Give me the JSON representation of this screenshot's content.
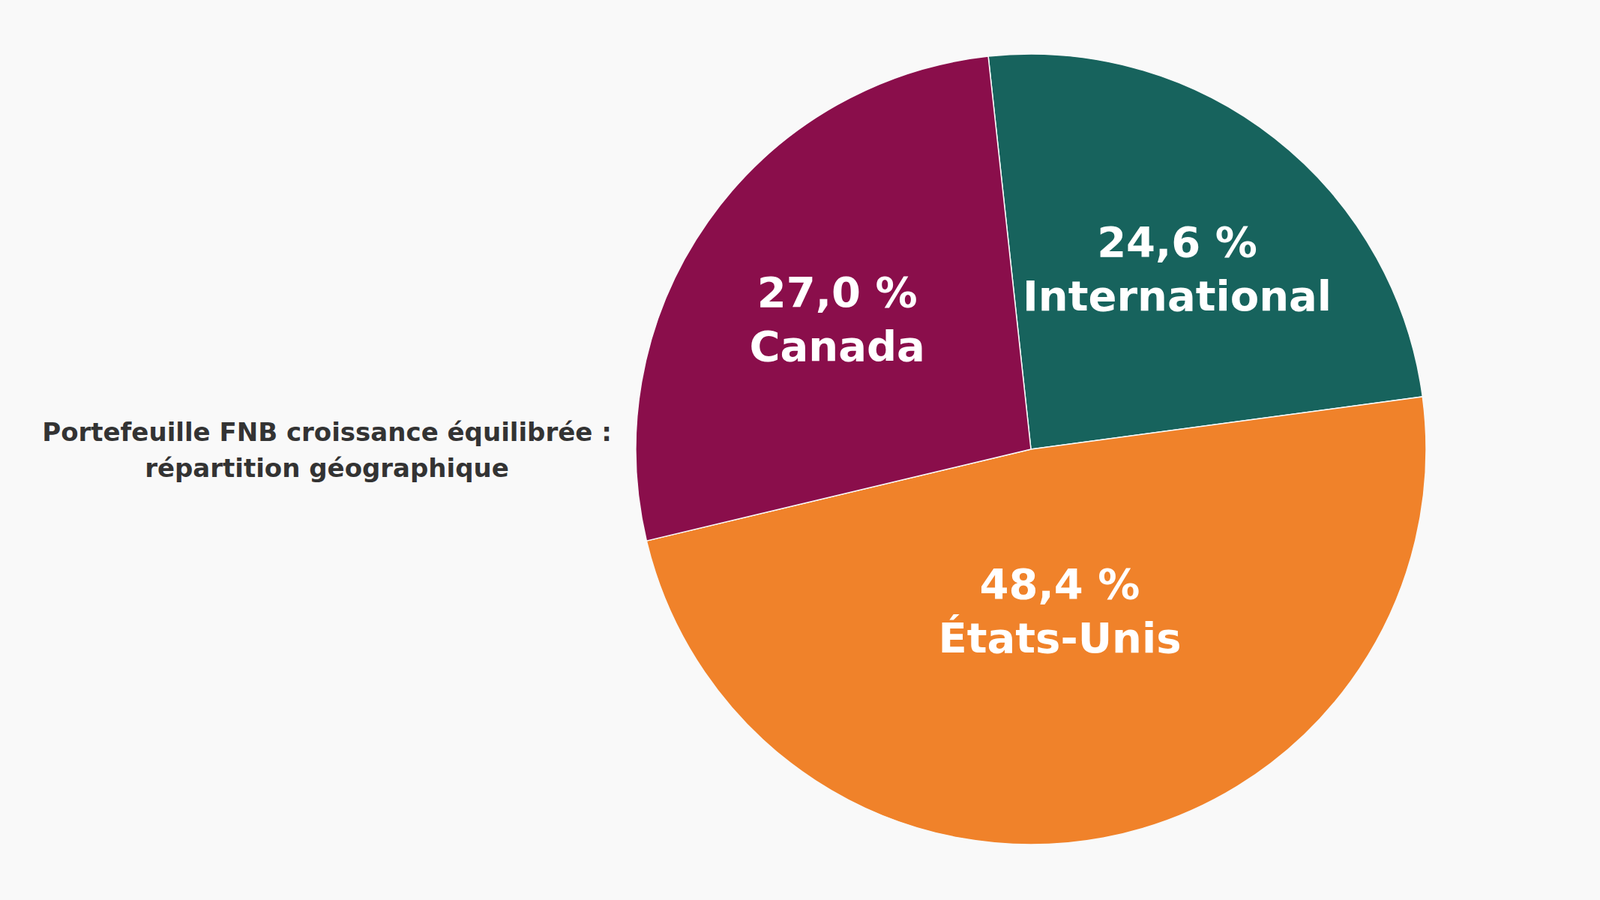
{
  "chart_data": {
    "type": "pie",
    "title": "Portefeuille FNB croissance équilibrée :\nrépartition géographique",
    "categories": [
      "International",
      "États-Unis",
      "Canada"
    ],
    "values": [
      24.6,
      48.4,
      27.0
    ],
    "value_labels": [
      "24,6 %",
      "48,4 %",
      "27,0 %"
    ],
    "colors": [
      "#17635d",
      "#f0822a",
      "#8a0e4b"
    ],
    "data_labels": true
  }
}
